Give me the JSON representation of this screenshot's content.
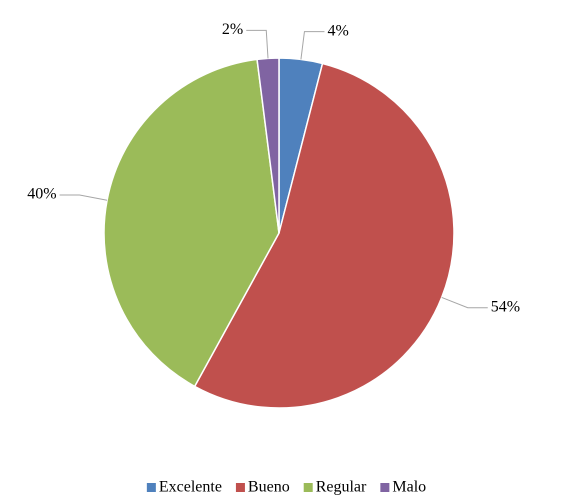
{
  "chart_data": {
    "type": "pie",
    "categories": [
      "Excelente",
      "Bueno",
      "Regular",
      "Malo"
    ],
    "values": [
      4,
      54,
      40,
      2
    ],
    "value_labels": [
      "4%",
      "54%",
      "40%",
      "2%"
    ],
    "colors": [
      "#4f81bd",
      "#c0504d",
      "#9bbb59",
      "#8064a2"
    ],
    "legend": "bottom"
  }
}
